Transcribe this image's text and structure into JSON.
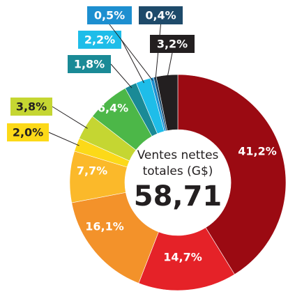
{
  "chart_data": {
    "type": "donut",
    "values": [
      41.2,
      14.7,
      16.1,
      7.7,
      2.0,
      3.8,
      6.4,
      1.8,
      2.2,
      0.5,
      0.4,
      3.2
    ],
    "value_labels": [
      "41,2%",
      "14,7%",
      "16,1%",
      "7,7%",
      "2,0%",
      "3,8%",
      "6,4%",
      "1,8%",
      "2,2%",
      "0,5%",
      "0,4%",
      "3,2%"
    ],
    "colors": [
      "#9b0a12",
      "#e52228",
      "#f3922a",
      "#fbb92a",
      "#fcd918",
      "#c5d632",
      "#4cb748",
      "#1a8a96",
      "#1ebde9",
      "#1d8fd0",
      "#1e4a6a",
      "#231f20"
    ],
    "center_text": [
      "Ventes nettes",
      "totales (G$)"
    ],
    "center_value": "58,71"
  }
}
